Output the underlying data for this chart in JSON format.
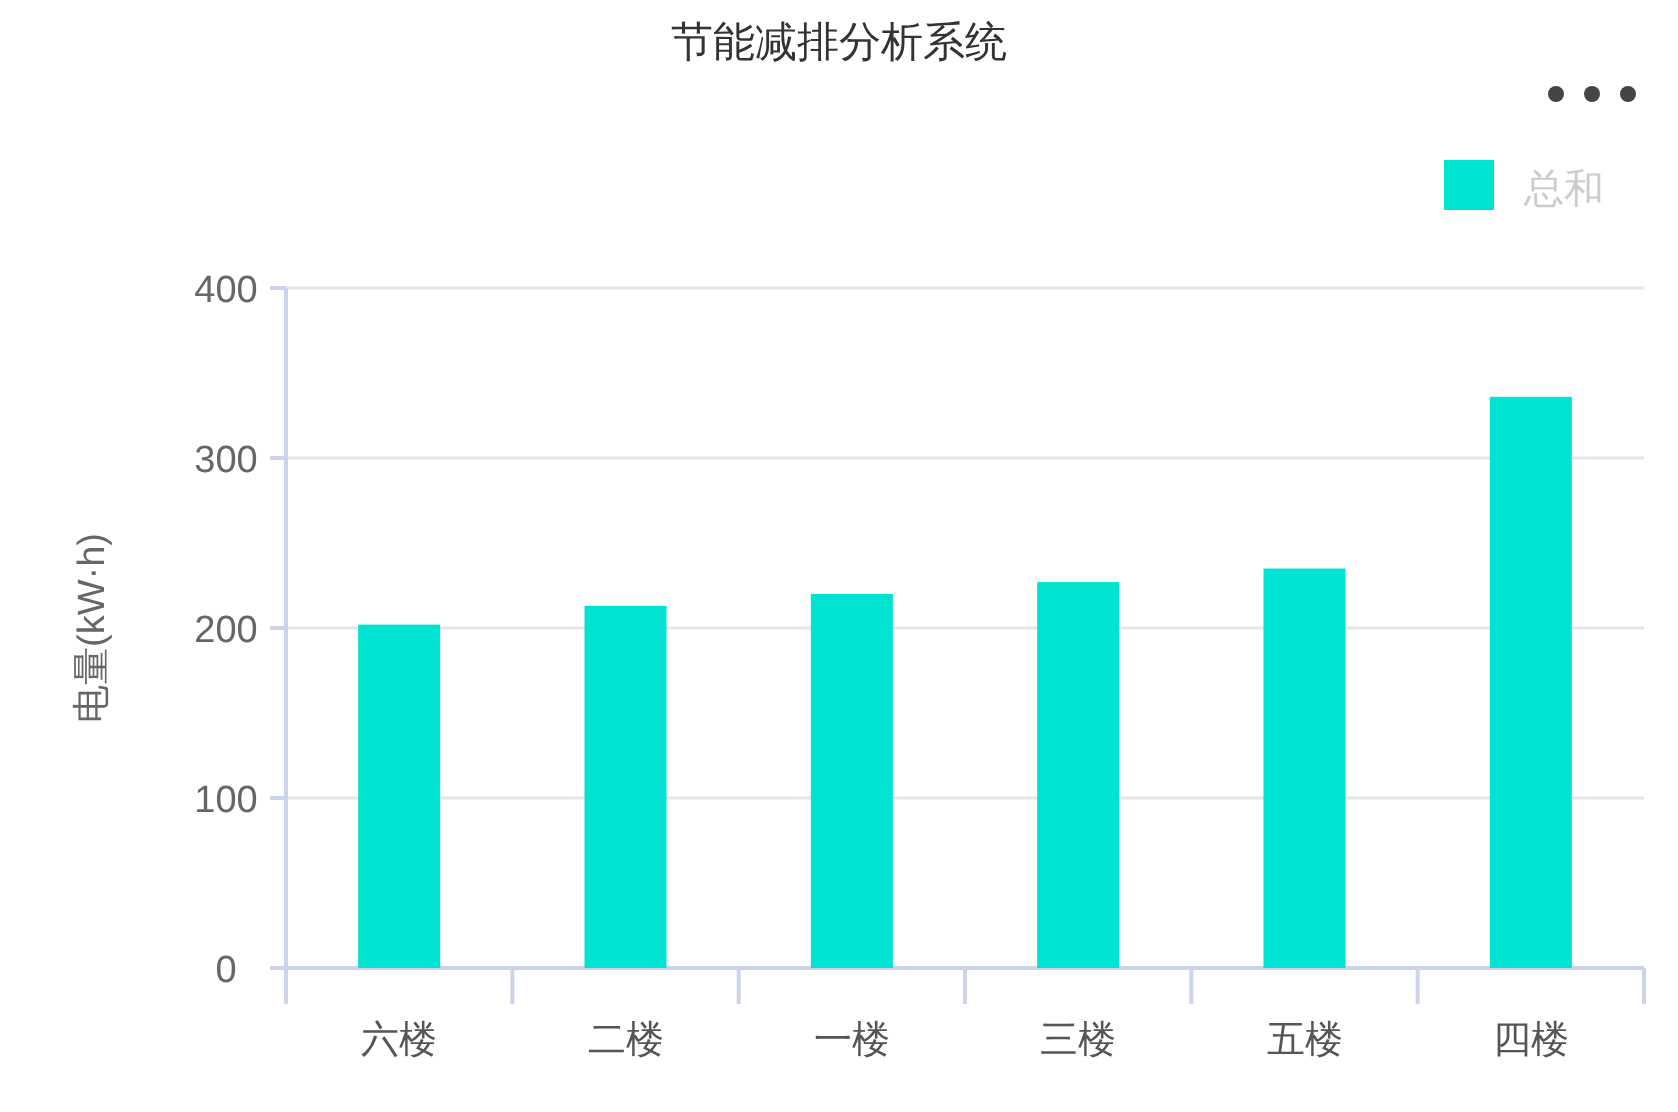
{
  "chart_data": {
    "type": "bar",
    "title": "节能减排分析系统",
    "ylabel": "电量(kW·h)",
    "categories": [
      "六楼",
      "二楼",
      "一楼",
      "三楼",
      "五楼",
      "四楼"
    ],
    "series": [
      {
        "name": "总和",
        "color": "#00e3d1",
        "values": [
          202,
          213,
          220,
          227,
          235,
          336
        ]
      }
    ],
    "ylim": [
      0,
      400
    ],
    "yticks": [
      0,
      100,
      200,
      300,
      400
    ],
    "grid": "y",
    "legend": "top right"
  }
}
